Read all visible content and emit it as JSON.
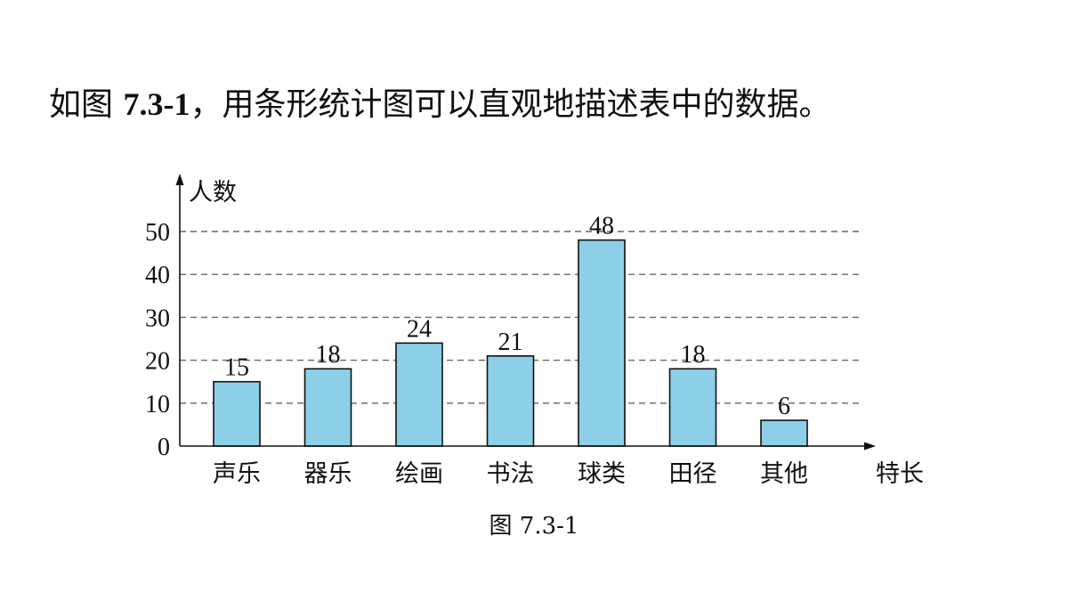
{
  "heading": {
    "prefix": "如图 ",
    "figref": "7.3-1",
    "suffix": "，用条形统计图可以直观地描述表中的数据。"
  },
  "caption": "图 7.3-1",
  "chart_data": {
    "type": "bar",
    "ylabel": "人数",
    "xlabel": "特长",
    "categories": [
      "声乐",
      "器乐",
      "绘画",
      "书法",
      "球类",
      "田径",
      "其他"
    ],
    "values": [
      15,
      18,
      24,
      21,
      48,
      18,
      6
    ],
    "data_labels": [
      "15",
      "18",
      "24",
      "21",
      "48",
      "18",
      "6"
    ],
    "yticks": [
      0,
      10,
      20,
      30,
      40,
      50
    ],
    "ylim": [
      0,
      50
    ],
    "grid": "dashed-horizontal",
    "bar_color": "#8ecfe8",
    "bar_stroke": "#111111"
  }
}
